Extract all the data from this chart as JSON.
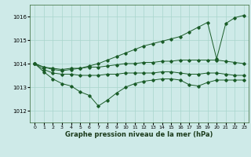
{
  "xlabel": "Graphe pression niveau de la mer (hPa)",
  "background_color": "#ceeae8",
  "grid_color": "#a8d5cc",
  "line_color": "#1a5c28",
  "ylim": [
    1011.5,
    1016.5
  ],
  "yticks": [
    1012,
    1013,
    1014,
    1015,
    1016
  ],
  "xlim": [
    -0.5,
    23.5
  ],
  "xticks": [
    0,
    1,
    2,
    3,
    4,
    5,
    6,
    7,
    8,
    9,
    10,
    11,
    12,
    13,
    14,
    15,
    16,
    17,
    18,
    19,
    20,
    21,
    22,
    23
  ],
  "series": [
    [
      1014.0,
      1013.85,
      1013.8,
      1013.75,
      1013.8,
      1013.8,
      1013.85,
      1013.85,
      1013.9,
      1013.95,
      1014.0,
      1014.0,
      1014.05,
      1014.05,
      1014.1,
      1014.1,
      1014.15,
      1014.15,
      1014.15,
      1014.15,
      1014.15,
      1014.1,
      1014.05,
      1014.0
    ],
    [
      1014.0,
      1013.75,
      1013.6,
      1013.55,
      1013.55,
      1013.5,
      1013.5,
      1013.5,
      1013.55,
      1013.55,
      1013.6,
      1013.6,
      1013.6,
      1013.6,
      1013.65,
      1013.65,
      1013.6,
      1013.55,
      1013.55,
      1013.6,
      1013.6,
      1013.55,
      1013.5,
      1013.5
    ],
    [
      1014.0,
      1013.65,
      1013.35,
      1013.15,
      1013.05,
      1012.8,
      1012.65,
      1012.2,
      1012.45,
      1012.75,
      1013.0,
      1013.15,
      1013.25,
      1013.3,
      1013.35,
      1013.35,
      1013.3,
      1013.1,
      1013.05,
      1013.2,
      1013.3,
      1013.3,
      1013.3,
      1013.3
    ],
    [
      1014.0,
      1013.85,
      1013.75,
      1013.7,
      1013.75,
      1013.8,
      1013.9,
      1014.0,
      1014.15,
      1014.3,
      1014.45,
      1014.6,
      1014.75,
      1014.85,
      1014.95,
      1015.05,
      1015.15,
      1015.35,
      1015.55,
      1015.75,
      1014.2,
      1015.7,
      1015.95,
      1016.05
    ]
  ]
}
